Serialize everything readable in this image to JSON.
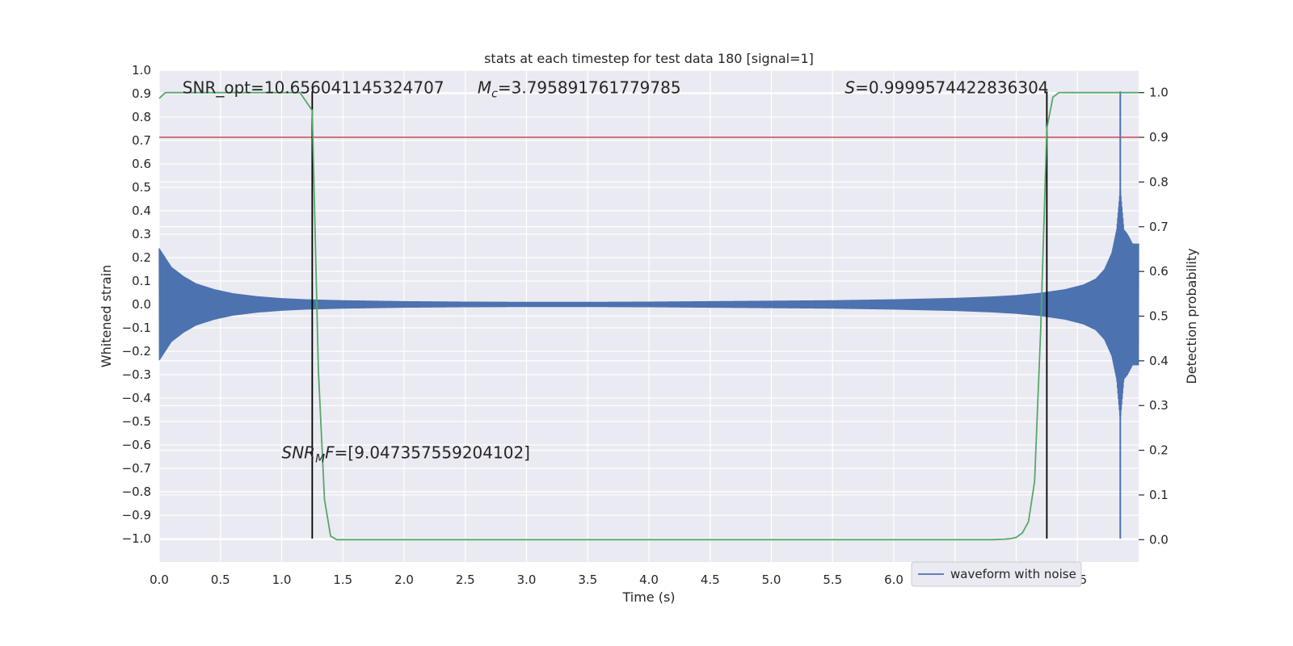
{
  "chart_data": {
    "type": "line",
    "title": "stats at each timestep for test data 180 [signal=1]",
    "xlabel": "Time (s)",
    "ylabel_left": "Whitened strain",
    "ylabel_right": "Detection probability",
    "xlim": [
      0.0,
      8.0
    ],
    "ylim_left": [
      -1.1,
      1.0
    ],
    "ylim_right": [
      -0.05,
      1.05
    ],
    "x_ticks": [
      0.0,
      0.5,
      1.0,
      1.5,
      2.0,
      2.5,
      3.0,
      3.5,
      4.0,
      4.5,
      5.0,
      5.5,
      6.0,
      6.5,
      7.0,
      7.5
    ],
    "x_tick_labels": [
      "0.0",
      "0.5",
      "1.0",
      "1.5",
      "2.0",
      "2.5",
      "3.0",
      "3.5",
      "4.0",
      "4.5",
      "5.0",
      "5.5",
      "6.0",
      "6.5",
      "7.0",
      "7.5"
    ],
    "y_left_ticks": [
      1.0,
      0.9,
      0.8,
      0.7,
      0.6,
      0.5,
      0.4,
      0.3,
      0.2,
      0.1,
      0.0,
      -0.1,
      -0.2,
      -0.3,
      -0.4,
      -0.5,
      -0.6,
      -0.7,
      -0.8,
      -0.9,
      -1.0
    ],
    "y_left_tick_labels": [
      "1.0",
      "0.9",
      "0.8",
      "0.7",
      "0.6",
      "0.5",
      "0.4",
      "0.3",
      "0.2",
      "0.1",
      "0.0",
      "−0.1",
      "−0.2",
      "−0.3",
      "−0.4",
      "−0.5",
      "−0.6",
      "−0.7",
      "−0.8",
      "−0.9",
      "−1.0"
    ],
    "y_right_ticks": [
      1.0,
      0.9,
      0.8,
      0.7,
      0.6,
      0.5,
      0.4,
      0.3,
      0.2,
      0.1,
      0.0
    ],
    "y_right_tick_labels": [
      "1.0",
      "0.9",
      "0.8",
      "0.7",
      "0.6",
      "0.5",
      "0.4",
      "0.3",
      "0.2",
      "0.1",
      "0.0"
    ],
    "grid": true,
    "series": [
      {
        "name": "waveform with noise",
        "kind": "waveform",
        "axis": "left",
        "color": "#4c72b0",
        "envelope_t": [
          0.0,
          0.1,
          0.2,
          0.3,
          0.45,
          0.6,
          0.8,
          1.0,
          1.2,
          1.5,
          2.0,
          2.5,
          3.0,
          3.5,
          4.0,
          4.5,
          5.0,
          5.5,
          6.0,
          6.5,
          6.8,
          7.0,
          7.2,
          7.4,
          7.55,
          7.65,
          7.72,
          7.78,
          7.82,
          7.85,
          7.88,
          7.91,
          7.95,
          8.0
        ],
        "envelope_a": [
          0.24,
          0.16,
          0.12,
          0.09,
          0.065,
          0.048,
          0.035,
          0.027,
          0.022,
          0.018,
          0.014,
          0.012,
          0.011,
          0.011,
          0.012,
          0.014,
          0.016,
          0.018,
          0.022,
          0.028,
          0.034,
          0.04,
          0.05,
          0.065,
          0.085,
          0.11,
          0.15,
          0.22,
          0.32,
          0.5,
          0.32,
          0.3,
          0.26,
          0.26
        ],
        "peak_t": 7.85,
        "peak_max": 0.91,
        "peak_min": -1.0
      },
      {
        "kind": "line",
        "axis": "right",
        "color": "#55a868",
        "x": [
          0.0,
          0.05,
          0.1,
          0.5,
          1.0,
          1.15,
          1.2,
          1.25,
          1.3,
          1.35,
          1.4,
          1.45,
          1.5,
          1.6,
          2.0,
          3.0,
          4.0,
          5.0,
          6.0,
          6.5,
          6.8,
          6.9,
          6.95,
          7.0,
          7.05,
          7.1,
          7.15,
          7.2,
          7.25,
          7.3,
          7.35,
          7.4,
          7.5,
          8.0
        ],
        "y": [
          0.987,
          1.0,
          1.0,
          1.0,
          1.0,
          1.0,
          0.98,
          0.96,
          0.38,
          0.09,
          0.008,
          0.0,
          0.0,
          0.0,
          0.0,
          0.0,
          0.0,
          0.0,
          0.0,
          0.0,
          0.0,
          0.001,
          0.002,
          0.005,
          0.015,
          0.04,
          0.13,
          0.47,
          0.92,
          0.99,
          1.0,
          1.0,
          1.0,
          1.0
        ]
      }
    ],
    "threshold": {
      "axis": "right",
      "value": 0.9,
      "color": "#c44e52"
    },
    "vlines": [
      1.25,
      7.25
    ],
    "vline_range": [
      -1.0,
      0.91
    ],
    "annotations": [
      {
        "text": "SNR_opt=10.656041145324707",
        "x": 0.19,
        "y": 0.93
      },
      {
        "text_math": "M",
        "text_sub": "c",
        "text_rest": "=3.795891761779785",
        "x": 2.6,
        "y": 0.93
      },
      {
        "text_math": "S",
        "text_sub": "",
        "text_rest": "=0.9999574422836304",
        "x": 5.6,
        "y": 0.93
      },
      {
        "text_math": "SNR",
        "text_sub": "M",
        "text_math2": "F",
        "text_rest": "=[9.047357559204102]",
        "x": 1.0,
        "y": -0.63
      }
    ],
    "legend": {
      "position": "bottom-right",
      "entries": [
        "waveform with noise"
      ]
    }
  }
}
